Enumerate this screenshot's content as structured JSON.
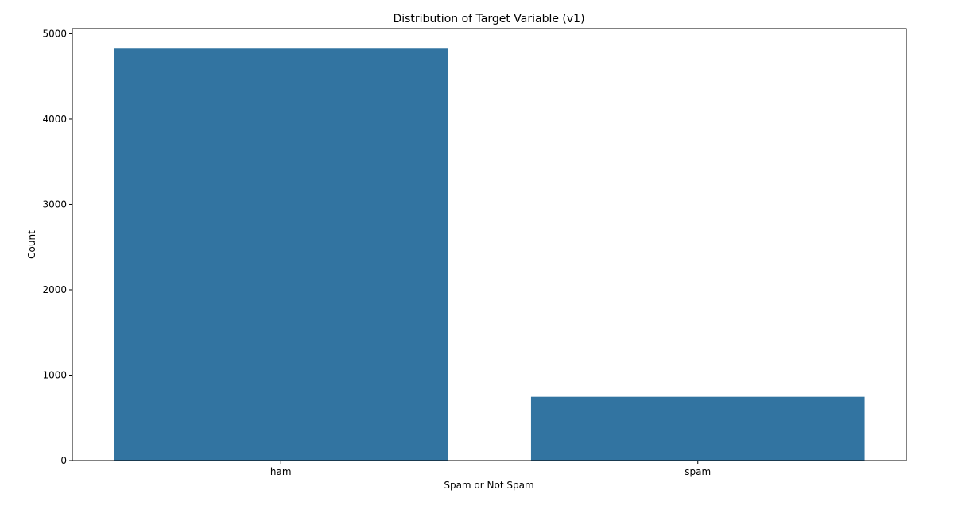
{
  "chart_data": {
    "type": "bar",
    "title": "Distribution of Target Variable (v1)",
    "xlabel": "Spam or Not Spam",
    "ylabel": "Count",
    "categories": [
      "ham",
      "spam"
    ],
    "values": [
      4825,
      747
    ],
    "ylim": [
      0,
      5060
    ],
    "yticks": [
      0,
      1000,
      2000,
      3000,
      4000,
      5000
    ],
    "grid": false,
    "legend": "none",
    "colors": {
      "bar": "#3274a1",
      "axes": "#000000",
      "background": "#ffffff"
    }
  }
}
